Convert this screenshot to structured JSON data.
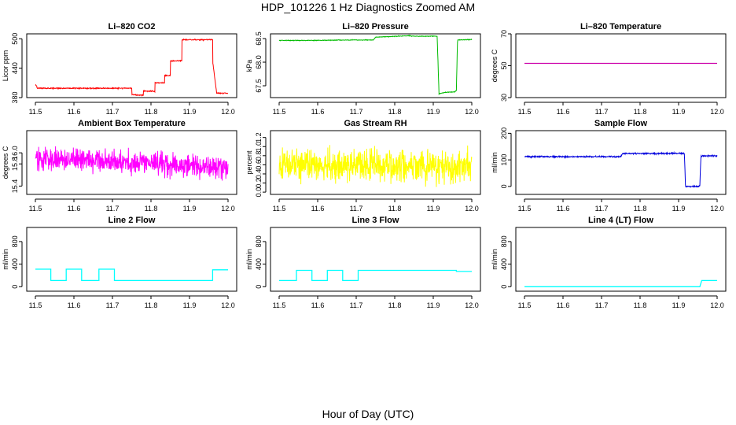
{
  "page": {
    "title": "HDP_101226  1 Hz Diagnostics Zoomed AM",
    "footer": "Hour of Day (UTC)"
  },
  "chart_data": [
    {
      "type": "line",
      "title": "Li–820 CO2",
      "ylabel": "Licor ppm",
      "color": "#ff0000",
      "xlim": [
        11.5,
        12.0
      ],
      "ylim": [
        380,
        510
      ],
      "x_ticks": [
        "11.5",
        "11.6",
        "11.7",
        "11.8",
        "11.9",
        "12.0"
      ],
      "y_ticks": [
        {
          "v": 380,
          "t": "380"
        },
        {
          "v": 440,
          "t": "440"
        },
        {
          "v": 500,
          "t": "500"
        }
      ],
      "noise": 1.2,
      "x": [
        11.5,
        11.504,
        11.504,
        11.75,
        11.75,
        11.76,
        11.76,
        11.78,
        11.78,
        11.81,
        11.81,
        11.835,
        11.835,
        11.85,
        11.85,
        11.88,
        11.88,
        11.96,
        11.96,
        11.97,
        11.97,
        12.0
      ],
      "y": [
        405,
        403,
        399,
        399,
        386,
        386,
        385,
        385,
        393,
        393,
        410,
        410,
        425,
        425,
        455,
        455,
        498,
        498,
        455,
        392,
        389,
        389
      ]
    },
    {
      "type": "line",
      "title": "Li–820 Pressure",
      "ylabel": "kPa",
      "color": "#00bb00",
      "xlim": [
        11.5,
        12.0
      ],
      "ylim": [
        67.25,
        68.6
      ],
      "x_ticks": [
        "11.5",
        "11.6",
        "11.7",
        "11.8",
        "11.9",
        "12.0"
      ],
      "y_ticks": [
        {
          "v": 67.5,
          "t": "67.5"
        },
        {
          "v": 68.0,
          "t": "68.0"
        },
        {
          "v": 68.5,
          "t": "68.5"
        }
      ],
      "noise": 0.008,
      "x": [
        11.5,
        11.6,
        11.67,
        11.745,
        11.75,
        11.78,
        11.84,
        11.845,
        11.91,
        11.915,
        11.93,
        11.955,
        11.96,
        11.963,
        12.0
      ],
      "y": [
        68.46,
        68.46,
        68.47,
        68.47,
        68.53,
        68.54,
        68.56,
        68.55,
        68.55,
        67.33,
        67.36,
        67.37,
        67.4,
        68.47,
        68.48
      ]
    },
    {
      "type": "line",
      "title": "Li–820 Temperature",
      "ylabel": "degrees C",
      "color": "#cc00aa",
      "xlim": [
        11.5,
        12.0
      ],
      "ylim": [
        30,
        70
      ],
      "x_ticks": [
        "11.5",
        "11.6",
        "11.7",
        "11.8",
        "11.9",
        "12.0"
      ],
      "y_ticks": [
        {
          "v": 30,
          "t": "30"
        },
        {
          "v": 50,
          "t": "50"
        },
        {
          "v": 70,
          "t": "70"
        }
      ],
      "noise": 0,
      "x": [
        11.5,
        12.0
      ],
      "y": [
        51.5,
        51.5
      ]
    },
    {
      "type": "line",
      "title": "Ambient Box Temperature",
      "ylabel": "degrees C",
      "color": "#ff00ff",
      "xlim": [
        11.5,
        12.0
      ],
      "ylim": [
        15.25,
        16.4
      ],
      "x_ticks": [
        "11.5",
        "11.6",
        "11.7",
        "11.8",
        "11.9",
        "12.0"
      ],
      "y_ticks": [
        {
          "v": 15.4,
          "t": "15.4"
        },
        {
          "v": 15.8,
          "t": "15.8"
        },
        {
          "v": 16.0,
          "t": "16.0"
        }
      ],
      "noise": 0.22,
      "x": [
        11.5,
        11.65,
        11.8,
        11.9,
        12.0
      ],
      "y": [
        15.88,
        15.86,
        15.82,
        15.76,
        15.74
      ]
    },
    {
      "type": "line",
      "title": "Gas Stream RH",
      "ylabel": "percent",
      "color": "#ffff00",
      "xlim": [
        11.5,
        12.0
      ],
      "ylim": [
        -0.05,
        1.35
      ],
      "x_ticks": [
        "11.5",
        "11.6",
        "11.7",
        "11.8",
        "11.9",
        "12.0"
      ],
      "y_ticks": [
        {
          "v": 0.0,
          "t": "0.0"
        },
        {
          "v": 0.2,
          "t": "0.2"
        },
        {
          "v": 0.4,
          "t": "0.4"
        },
        {
          "v": 0.6,
          "t": "0.6"
        },
        {
          "v": 0.8,
          "t": "0.8"
        },
        {
          "v": 1.0,
          "t": "1.0"
        },
        {
          "v": 1.2,
          "t": "1.2"
        }
      ],
      "noise": 0.4,
      "x": [
        11.5,
        11.75,
        12.0
      ],
      "y": [
        0.6,
        0.58,
        0.56
      ]
    },
    {
      "type": "line",
      "title": "Sample Flow",
      "ylabel": "ml/min",
      "color": "#0000dd",
      "xlim": [
        11.5,
        12.0
      ],
      "ylim": [
        -30,
        210
      ],
      "x_ticks": [
        "11.5",
        "11.6",
        "11.7",
        "11.8",
        "11.9",
        "12.0"
      ],
      "y_ticks": [
        {
          "v": 0,
          "t": "0"
        },
        {
          "v": 100,
          "t": "100"
        },
        {
          "v": 200,
          "t": "200"
        }
      ],
      "noise": 3,
      "x": [
        11.5,
        11.75,
        11.755,
        11.915,
        11.918,
        11.955,
        11.958,
        12.0
      ],
      "y": [
        112,
        112,
        124,
        124,
        0,
        0,
        115,
        115
      ]
    },
    {
      "type": "line",
      "title": "Line 2 Flow",
      "ylabel": "ml/min",
      "color": "#00ffff",
      "xlim": [
        11.5,
        12.0
      ],
      "ylim": [
        -80,
        1050
      ],
      "x_ticks": [
        "11.5",
        "11.6",
        "11.7",
        "11.8",
        "11.9",
        "12.0"
      ],
      "y_ticks": [
        {
          "v": 0,
          "t": "0"
        },
        {
          "v": 400,
          "t": "400"
        },
        {
          "v": 800,
          "t": "800"
        }
      ],
      "noise": 0,
      "x": [
        11.5,
        11.54,
        11.54,
        11.58,
        11.58,
        11.62,
        11.62,
        11.665,
        11.665,
        11.705,
        11.705,
        11.96,
        11.96,
        12.0
      ],
      "y": [
        310,
        310,
        110,
        110,
        310,
        310,
        110,
        110,
        310,
        310,
        110,
        110,
        300,
        300
      ]
    },
    {
      "type": "line",
      "title": "Line 3 Flow",
      "ylabel": "ml/min",
      "color": "#00ffff",
      "xlim": [
        11.5,
        12.0
      ],
      "ylim": [
        -80,
        1050
      ],
      "x_ticks": [
        "11.5",
        "11.6",
        "11.7",
        "11.8",
        "11.9",
        "12.0"
      ],
      "y_ticks": [
        {
          "v": 0,
          "t": "0"
        },
        {
          "v": 400,
          "t": "400"
        },
        {
          "v": 800,
          "t": "800"
        }
      ],
      "noise": 0,
      "x": [
        11.5,
        11.545,
        11.545,
        11.585,
        11.585,
        11.625,
        11.625,
        11.665,
        11.665,
        11.705,
        11.705,
        11.96,
        11.96,
        12.0
      ],
      "y": [
        110,
        110,
        290,
        290,
        110,
        110,
        290,
        290,
        110,
        110,
        290,
        290,
        270,
        270
      ]
    },
    {
      "type": "line",
      "title": "Line 4 (LT) Flow",
      "ylabel": "ml/min",
      "color": "#00ffff",
      "xlim": [
        11.5,
        12.0
      ],
      "ylim": [
        -80,
        1050
      ],
      "x_ticks": [
        "11.5",
        "11.6",
        "11.7",
        "11.8",
        "11.9",
        "12.0"
      ],
      "y_ticks": [
        {
          "v": 0,
          "t": "0"
        },
        {
          "v": 400,
          "t": "400"
        },
        {
          "v": 800,
          "t": "800"
        }
      ],
      "noise": 0,
      "x": [
        11.5,
        11.955,
        11.96,
        12.0
      ],
      "y": [
        0,
        0,
        110,
        110
      ]
    }
  ]
}
